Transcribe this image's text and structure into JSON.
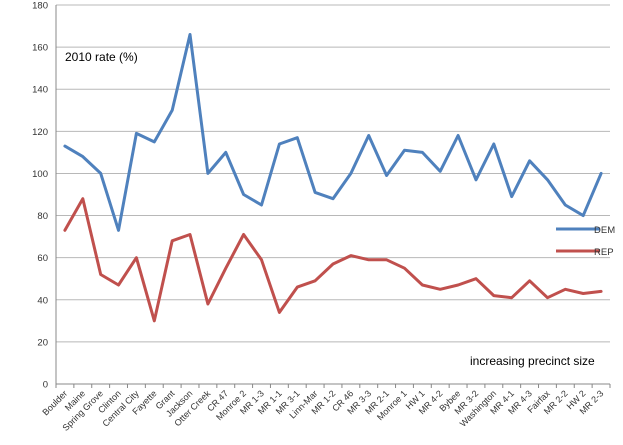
{
  "chart_data": {
    "type": "line",
    "categories": [
      "Boulder",
      "Maine",
      "Spring Grove",
      "Clinton",
      "Central City",
      "Fayette",
      "Grant",
      "Jackson",
      "Otter Creek",
      "CR 47",
      "Monroe 2",
      "MR 1-3",
      "MR 1-1",
      "MR 3-1",
      "Linn-Mar",
      "MR 1-2",
      "CR 46",
      "MR 3-3",
      "MR 2-1",
      "Monroe 1",
      "HW 1",
      "MR 4-2",
      "Bybee",
      "MR 3-2",
      "Washington",
      "MR 4-1",
      "MR 4-3",
      "Fairfax",
      "MR 2-2",
      "HW 2",
      "MR 2-3"
    ],
    "series": [
      {
        "name": "DEM",
        "color": "#4f81bd",
        "values": [
          113,
          108,
          100,
          73,
          119,
          115,
          130,
          166,
          100,
          110,
          90,
          85,
          114,
          117,
          91,
          88,
          100,
          118,
          99,
          111,
          110,
          101,
          118,
          97,
          114,
          89,
          106,
          97,
          85,
          80,
          100
        ]
      },
      {
        "name": "REP",
        "color": "#c0504d",
        "values": [
          73,
          88,
          52,
          47,
          60,
          30,
          68,
          71,
          38,
          55,
          71,
          59,
          34,
          46,
          49,
          57,
          61,
          59,
          59,
          55,
          47,
          45,
          47,
          50,
          42,
          41,
          49,
          41,
          45,
          43,
          44
        ]
      }
    ],
    "ylim": [
      0,
      180
    ],
    "yticks": [
      "0",
      "20",
      "40",
      "60",
      "80",
      "100",
      "120",
      "140",
      "160",
      "180"
    ],
    "grid": true,
    "legend_position": "right",
    "annotations": {
      "rate_label": "2010 rate (%)",
      "size_label": "increasing precinct size"
    }
  }
}
